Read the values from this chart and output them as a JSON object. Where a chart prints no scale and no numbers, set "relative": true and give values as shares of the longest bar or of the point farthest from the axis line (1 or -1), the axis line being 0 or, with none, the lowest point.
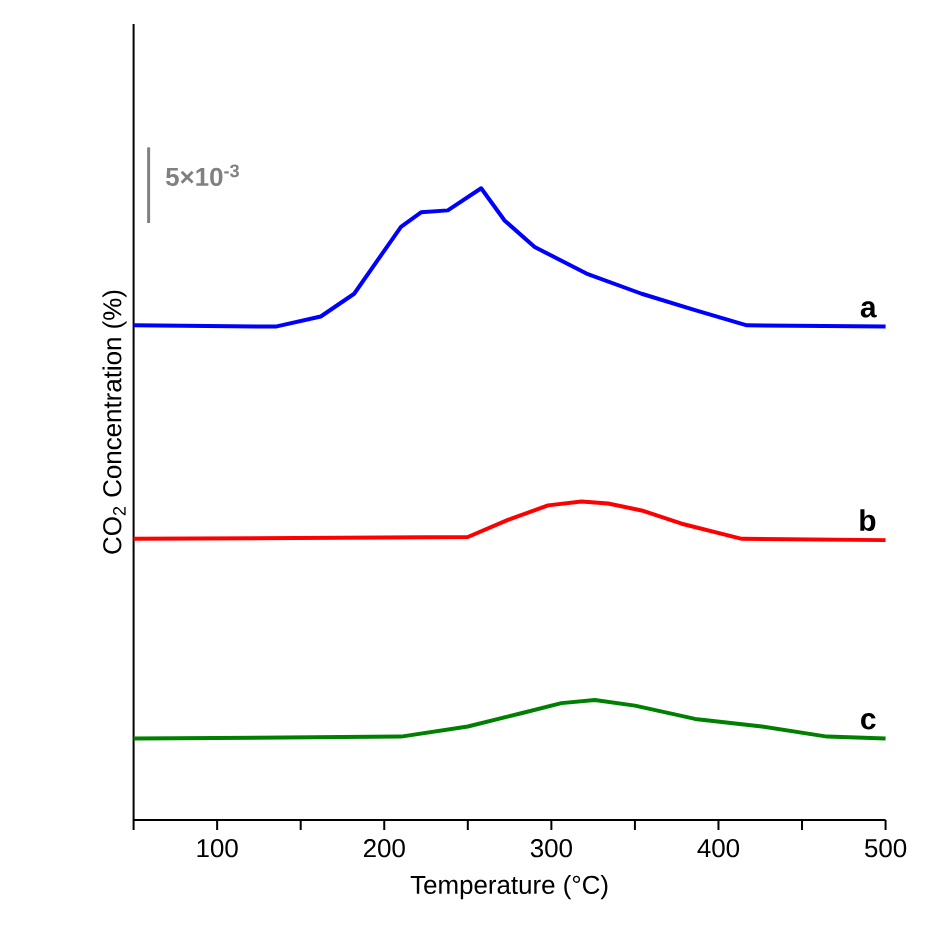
{
  "chart_data": {
    "type": "line",
    "relative": true,
    "xlabel": "Temperature (°C)",
    "ylabel": "CO$_{2}$ Concentration (%)",
    "annotations": [
      "5×10$^{-3}$"
    ],
    "xlim": [
      50,
      500
    ],
    "xticks": [
      {
        "value": 50,
        "label": null
      },
      100,
      {
        "value": 150,
        "label": null
      },
      200,
      {
        "value": 250,
        "label": null
      },
      300,
      {
        "value": 350,
        "label": null
      },
      400,
      {
        "value": 450,
        "label": null
      },
      500
    ],
    "tick_labels": "x",
    "line_style": "solid",
    "series": [
      {
        "name": "a",
        "color": "#0000ff",
        "x": [
          50,
          135,
          162,
          182,
          210,
          222,
          238,
          258,
          272,
          290,
          321,
          354,
          386,
          417,
          500
        ],
        "values": [
          0.783,
          0.781,
          0.797,
          0.833,
          0.939,
          0.962,
          0.965,
          1.0,
          0.949,
          0.907,
          0.865,
          0.833,
          0.807,
          0.783,
          0.781
        ]
      },
      {
        "name": "b",
        "color": "#ff0000",
        "x": [
          50,
          250,
          274,
          298,
          318,
          334,
          354,
          378,
          414,
          500
        ],
        "values": [
          0.445,
          0.448,
          0.475,
          0.498,
          0.504,
          0.501,
          0.49,
          0.469,
          0.445,
          0.443
        ]
      },
      {
        "name": "c",
        "color": "#008000",
        "x": [
          50,
          210,
          250,
          282,
          306,
          326,
          350,
          386,
          426,
          465,
          500
        ],
        "values": [
          0.129,
          0.132,
          0.148,
          0.169,
          0.185,
          0.19,
          0.181,
          0.16,
          0.148,
          0.132,
          0.129
        ]
      }
    ]
  }
}
